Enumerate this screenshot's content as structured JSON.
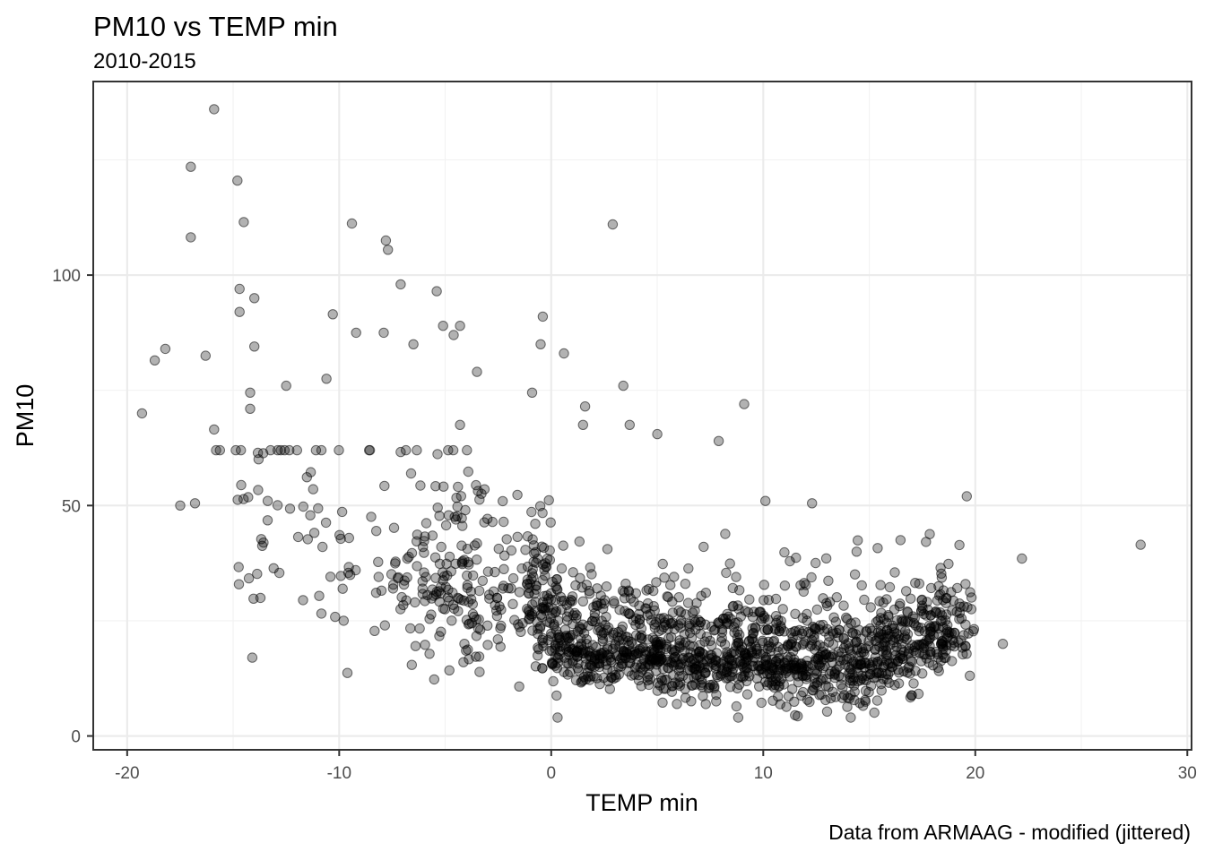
{
  "chart_data": {
    "type": "scatter",
    "title": "PM10 vs TEMP min",
    "subtitle": "2010-2015",
    "xlabel": "TEMP min",
    "ylabel": "PM10",
    "caption": "Data from ARMAAG - modified (jittered)",
    "xlim": [
      -21.6,
      30.2
    ],
    "ylim": [
      -3,
      142
    ],
    "x_ticks": [
      -20,
      -10,
      0,
      10,
      20,
      30
    ],
    "x_tick_labels": [
      "-20",
      "-10",
      "0",
      "10",
      "20",
      "30"
    ],
    "y_ticks": [
      0,
      50,
      100
    ],
    "y_tick_labels": [
      "0",
      "50",
      "100"
    ],
    "grid": true,
    "point_color": "#000000",
    "point_alpha": 0.3,
    "highlighted_points": [
      {
        "x": -15.9,
        "y": 136
      },
      {
        "x": -17.0,
        "y": 123.5
      },
      {
        "x": -14.8,
        "y": 120.5
      },
      {
        "x": -14.5,
        "y": 111.5
      },
      {
        "x": -9.4,
        "y": 111.2
      },
      {
        "x": 2.9,
        "y": 111.0
      },
      {
        "x": -17.0,
        "y": 108.2
      },
      {
        "x": -7.8,
        "y": 107.5
      },
      {
        "x": -7.7,
        "y": 105.5
      },
      {
        "x": -7.1,
        "y": 98
      },
      {
        "x": -14.7,
        "y": 97
      },
      {
        "x": -5.4,
        "y": 96.5
      },
      {
        "x": -14.0,
        "y": 95
      },
      {
        "x": -14.7,
        "y": 92
      },
      {
        "x": -10.3,
        "y": 91.5
      },
      {
        "x": -0.4,
        "y": 91
      },
      {
        "x": -5.1,
        "y": 89
      },
      {
        "x": -4.3,
        "y": 89
      },
      {
        "x": -9.2,
        "y": 87.5
      },
      {
        "x": -7.9,
        "y": 87.5
      },
      {
        "x": -4.6,
        "y": 87
      },
      {
        "x": -6.5,
        "y": 85
      },
      {
        "x": -0.5,
        "y": 85
      },
      {
        "x": -14.0,
        "y": 84.5
      },
      {
        "x": -18.2,
        "y": 84
      },
      {
        "x": 0.6,
        "y": 83
      },
      {
        "x": -16.3,
        "y": 82.5
      },
      {
        "x": -18.7,
        "y": 81.5
      },
      {
        "x": -3.5,
        "y": 79
      },
      {
        "x": -10.6,
        "y": 77.5
      },
      {
        "x": -12.5,
        "y": 76
      },
      {
        "x": 3.4,
        "y": 76
      },
      {
        "x": -14.2,
        "y": 74.5
      },
      {
        "x": -0.9,
        "y": 74.5
      },
      {
        "x": -14.2,
        "y": 71
      },
      {
        "x": 9.1,
        "y": 72
      },
      {
        "x": -19.3,
        "y": 70
      },
      {
        "x": 1.6,
        "y": 71.5
      },
      {
        "x": 1.5,
        "y": 67.5
      },
      {
        "x": -4.3,
        "y": 67.5
      },
      {
        "x": 3.7,
        "y": 67.5
      },
      {
        "x": -15.9,
        "y": 66.5
      },
      {
        "x": 5.0,
        "y": 65.5
      },
      {
        "x": 7.9,
        "y": 64
      },
      {
        "x": 27.8,
        "y": 41.5
      },
      {
        "x": 22.2,
        "y": 38.5
      },
      {
        "x": 21.3,
        "y": 20
      },
      {
        "x": 11.5,
        "y": 4.5
      },
      {
        "x": 0.3,
        "y": 4
      },
      {
        "x": -14.1,
        "y": 17
      },
      {
        "x": -17.5,
        "y": 50
      },
      {
        "x": -16.8,
        "y": 50.5
      },
      {
        "x": 12.3,
        "y": 50.5
      },
      {
        "x": 10.1,
        "y": 51
      }
    ]
  }
}
